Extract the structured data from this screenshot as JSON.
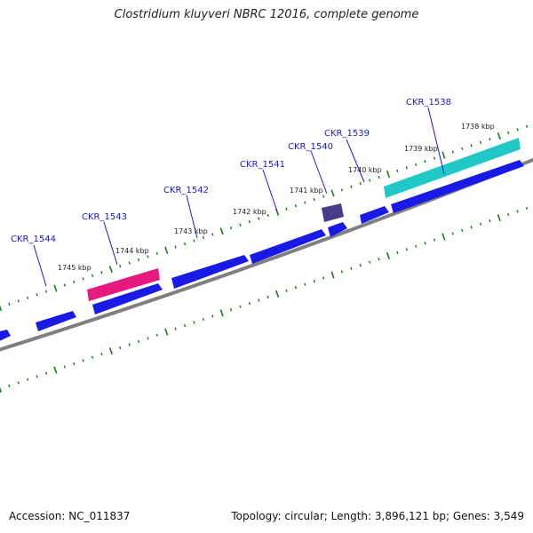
{
  "title": "Clostridium kluyveri NBRC 12016, complete genome",
  "footer": {
    "accession": "Accession: NC_011837",
    "summary": "Topology: circular; Length: 3,896,121 bp; Genes: 3,549"
  },
  "colors": {
    "forward_gene": "#1a1ae6",
    "reverse_gene": "#1a1ae6",
    "highlight_pink": "#e6197f",
    "highlight_cyan": "#20c8c8",
    "small_gene": "#4a3a8a",
    "backbone": "#808080",
    "ticks": "#1a7a1a",
    "label_text": "#1a1acc"
  },
  "gene_labels": [
    {
      "id": "CKR_1544",
      "label": "CKR_1544"
    },
    {
      "id": "CKR_1543",
      "label": "CKR_1543"
    },
    {
      "id": "CKR_1542",
      "label": "CKR_1542"
    },
    {
      "id": "CKR_1541",
      "label": "CKR_1541"
    },
    {
      "id": "CKR_1540",
      "label": "CKR_1540"
    },
    {
      "id": "CKR_1539",
      "label": "CKR_1539"
    },
    {
      "id": "CKR_1538",
      "label": "CKR_1538"
    }
  ],
  "kbp_labels": [
    "1745 kbp",
    "1744 kbp",
    "1743 kbp",
    "1742 kbp",
    "1741 kbp",
    "1740 kbp",
    "1739 kbp",
    "1738 kbp"
  ]
}
